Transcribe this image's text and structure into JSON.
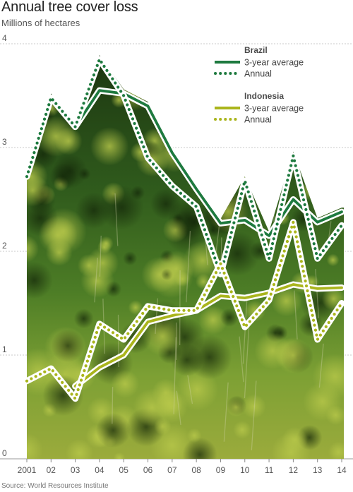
{
  "title": "Annual tree cover loss",
  "subtitle": "Millions of hectares",
  "source": "Source: World Resources Institute",
  "colors": {
    "brazil": "#1e7a3f",
    "indonesia": "#aab51c",
    "forest_dark": "#1e3a12",
    "forest_mid": "#3d6b22",
    "forest_light": "#7fa53a",
    "forest_yellow": "#c2c85a",
    "grid": "#c8c8c8",
    "background": "#ffffff"
  },
  "chart_data": {
    "type": "line",
    "title": "Annual tree cover loss",
    "ylabel": "Millions of hectares",
    "ylim": [
      0,
      4
    ],
    "yticks": [
      "0",
      "1",
      "2",
      "3",
      "4"
    ],
    "x": [
      "2001",
      "02",
      "03",
      "04",
      "05",
      "06",
      "07",
      "08",
      "09",
      "10",
      "11",
      "12",
      "13",
      "14"
    ],
    "grid": true,
    "legend_position": "top-right",
    "groups": [
      {
        "name": "Brazil",
        "color_key": "brazil"
      },
      {
        "name": "Indonesia",
        "color_key": "indonesia"
      }
    ],
    "series": [
      {
        "name": "3-year average",
        "group": "Brazil",
        "style": "solid",
        "values": [
          null,
          null,
          3.2,
          3.55,
          3.52,
          3.4,
          2.95,
          2.6,
          2.27,
          2.3,
          2.15,
          2.5,
          2.28,
          2.38
        ]
      },
      {
        "name": "Annual",
        "group": "Brazil",
        "style": "dotted",
        "values": [
          2.72,
          3.48,
          3.2,
          3.85,
          3.5,
          2.9,
          2.63,
          2.43,
          1.78,
          2.68,
          1.93,
          2.92,
          1.93,
          2.25
        ]
      },
      {
        "name": "3-year average",
        "group": "Indonesia",
        "style": "solid",
        "values": [
          null,
          null,
          0.7,
          0.88,
          1.0,
          1.32,
          1.38,
          1.43,
          1.57,
          1.55,
          1.6,
          1.68,
          1.64,
          1.65
        ]
      },
      {
        "name": "Annual",
        "group": "Indonesia",
        "style": "dotted",
        "values": [
          0.75,
          0.87,
          0.58,
          1.3,
          1.15,
          1.47,
          1.43,
          1.43,
          1.88,
          1.27,
          1.53,
          2.28,
          1.15,
          1.5
        ]
      }
    ]
  }
}
